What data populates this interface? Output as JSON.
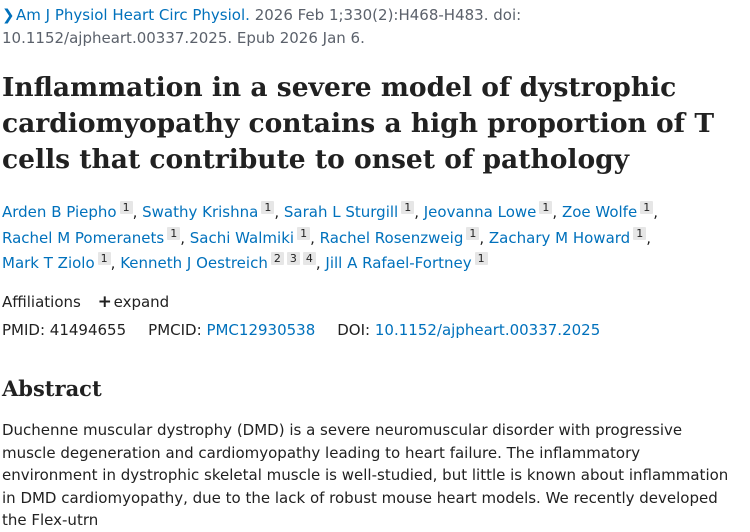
{
  "citation": {
    "journal": "Am J Physiol Heart Circ Physiol.",
    "details": "2026 Feb 1;330(2):H468-H483. doi: 10.1152/ajpheart.00337.2025. Epub 2026 Jan 6."
  },
  "title": "Inflammation in a severe model of dystrophic cardiomyopathy contains a high proportion of T cells that contribute to onset of pathology",
  "authors": [
    {
      "name": "Arden B Piepho",
      "aff": [
        "1"
      ]
    },
    {
      "name": "Swathy Krishna",
      "aff": [
        "1"
      ]
    },
    {
      "name": "Sarah L Sturgill",
      "aff": [
        "1"
      ]
    },
    {
      "name": "Jeovanna Lowe",
      "aff": [
        "1"
      ]
    },
    {
      "name": "Zoe Wolfe",
      "aff": [
        "1"
      ]
    },
    {
      "name": "Rachel M Pomeranets",
      "aff": [
        "1"
      ]
    },
    {
      "name": "Sachi Walmiki",
      "aff": [
        "1"
      ]
    },
    {
      "name": "Rachel Rosenzweig",
      "aff": [
        "1"
      ]
    },
    {
      "name": "Zachary M Howard",
      "aff": [
        "1"
      ]
    },
    {
      "name": "Mark T Ziolo",
      "aff": [
        "1"
      ]
    },
    {
      "name": "Kenneth J Oestreich",
      "aff": [
        "2",
        "3",
        "4"
      ]
    },
    {
      "name": "Jill A Rafael-Fortney",
      "aff": [
        "1"
      ]
    }
  ],
  "affiliations": {
    "label": "Affiliations",
    "expand_label": "expand"
  },
  "identifiers": {
    "pmid_label": "PMID:",
    "pmid": "41494655",
    "pmcid_label": "PMCID:",
    "pmcid": "PMC12930538",
    "doi_label": "DOI:",
    "doi": "10.1152/ajpheart.00337.2025"
  },
  "abstract": {
    "heading": "Abstract",
    "text": "Duchenne muscular dystrophy (DMD) is a severe neuromuscular disorder with progressive muscle degeneration and cardiomyopathy leading to heart failure. The inflammatory environment in dystrophic skeletal muscle is well-studied, but little is known about inflammation in DMD cardiomyopathy, due to the lack of robust mouse heart models. We recently developed the Flex-utrn"
  }
}
